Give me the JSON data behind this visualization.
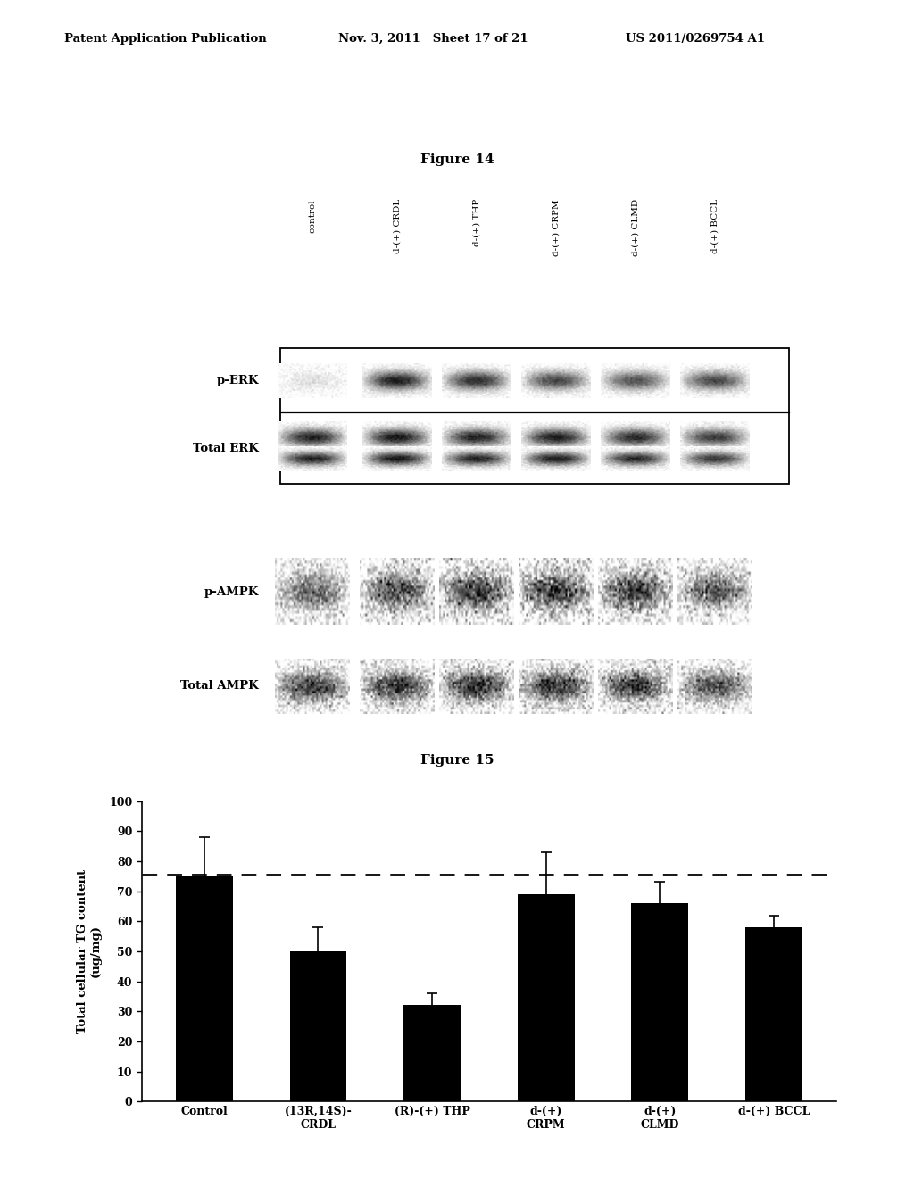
{
  "header_left": "Patent Application Publication",
  "header_mid": "Nov. 3, 2011   Sheet 17 of 21",
  "header_right": "US 2011/0269754 A1",
  "fig14_title": "Figure 14",
  "fig14_col_labels": [
    "control",
    "d-(+) CRDL",
    "d-(+) THP",
    "d-(+) CRPM",
    "d-(+) CLMD",
    "d-(+) BCCL"
  ],
  "fig15_title": "Figure 15",
  "fig15_categories": [
    "Control",
    "(13R,14S)-\nCRDL",
    "(R)-(+) THP",
    "d-(+)\nCRPM",
    "d-(+)\nCLMD",
    "d-(+) BCCL"
  ],
  "fig15_values": [
    75.0,
    50.0,
    32.0,
    69.0,
    66.0,
    58.0
  ],
  "fig15_errors": [
    13.0,
    8.0,
    4.0,
    14.0,
    7.0,
    4.0
  ],
  "fig15_dashed_line": 75.5,
  "fig15_ylabel": "Total cellular TG content\n(ug/mg)",
  "fig15_ylim": [
    0,
    100
  ],
  "fig15_yticks": [
    0,
    10,
    20,
    30,
    40,
    50,
    60,
    70,
    80,
    90,
    100
  ],
  "bar_color": "#000000",
  "background_color": "#ffffff",
  "perk_intensities": [
    0.12,
    0.88,
    0.82,
    0.72,
    0.68,
    0.72
  ],
  "total_erk_intensities": [
    0.88,
    0.92,
    0.88,
    0.9,
    0.85,
    0.78
  ],
  "pampk_intensities": [
    0.6,
    0.72,
    0.78,
    0.82,
    0.76,
    0.65
  ],
  "tampk_intensities": [
    0.78,
    0.82,
    0.82,
    0.82,
    0.8,
    0.72
  ]
}
